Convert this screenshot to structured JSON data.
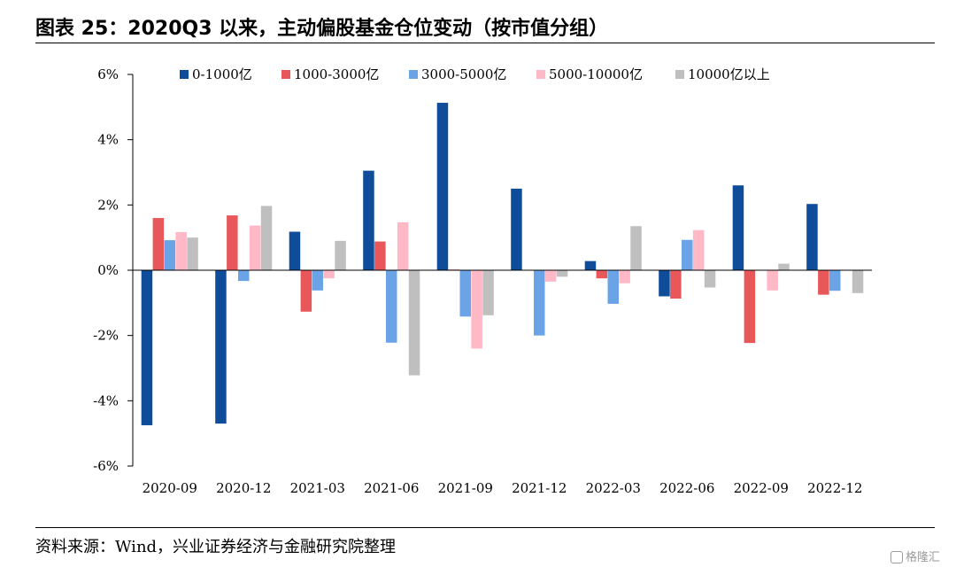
{
  "header": {
    "title": "图表 25：2020Q3 以来，主动偏股基金仓位变动（按市值分组）"
  },
  "footer": {
    "source": "资料来源：Wind，兴业证券经济与金融研究院整理",
    "watermark": "格隆汇"
  },
  "chart_data": {
    "type": "bar",
    "title": "",
    "xlabel": "",
    "ylabel": "",
    "ylim": [
      -6,
      6
    ],
    "yticks": [
      -6,
      -4,
      -2,
      0,
      2,
      4,
      6
    ],
    "ytick_labels": [
      "-6%",
      "-4%",
      "-2%",
      "0%",
      "2%",
      "4%",
      "6%"
    ],
    "legend_position": "top",
    "grid": false,
    "categories": [
      "2020-09",
      "2020-12",
      "2021-03",
      "2021-06",
      "2021-09",
      "2021-12",
      "2022-03",
      "2022-06",
      "2022-09",
      "2022-12"
    ],
    "series": [
      {
        "name": "0-1000亿",
        "color": "#0f4c99",
        "values": [
          -4.75,
          -4.7,
          1.18,
          3.05,
          5.13,
          2.5,
          0.28,
          -0.8,
          2.6,
          2.03
        ]
      },
      {
        "name": "1000-3000亿",
        "color": "#e8575a",
        "values": [
          1.6,
          1.68,
          -1.27,
          0.88,
          0.02,
          0.0,
          -0.25,
          -0.87,
          -2.23,
          -0.75
        ]
      },
      {
        "name": "3000-5000亿",
        "color": "#6aa4e6",
        "values": [
          0.92,
          -0.33,
          -0.62,
          -2.22,
          -1.42,
          -2.0,
          -1.03,
          0.93,
          0.0,
          -0.63
        ]
      },
      {
        "name": "5000-10000亿",
        "color": "#ffb8c6",
        "values": [
          1.17,
          1.37,
          -0.25,
          1.47,
          -2.4,
          -0.35,
          -0.4,
          1.23,
          -0.62,
          0.0
        ]
      },
      {
        "name": "10000亿以上",
        "color": "#bfbfbf",
        "values": [
          1.0,
          1.97,
          0.9,
          -3.22,
          -1.38,
          -0.2,
          1.35,
          -0.53,
          0.2,
          -0.7
        ]
      }
    ]
  }
}
